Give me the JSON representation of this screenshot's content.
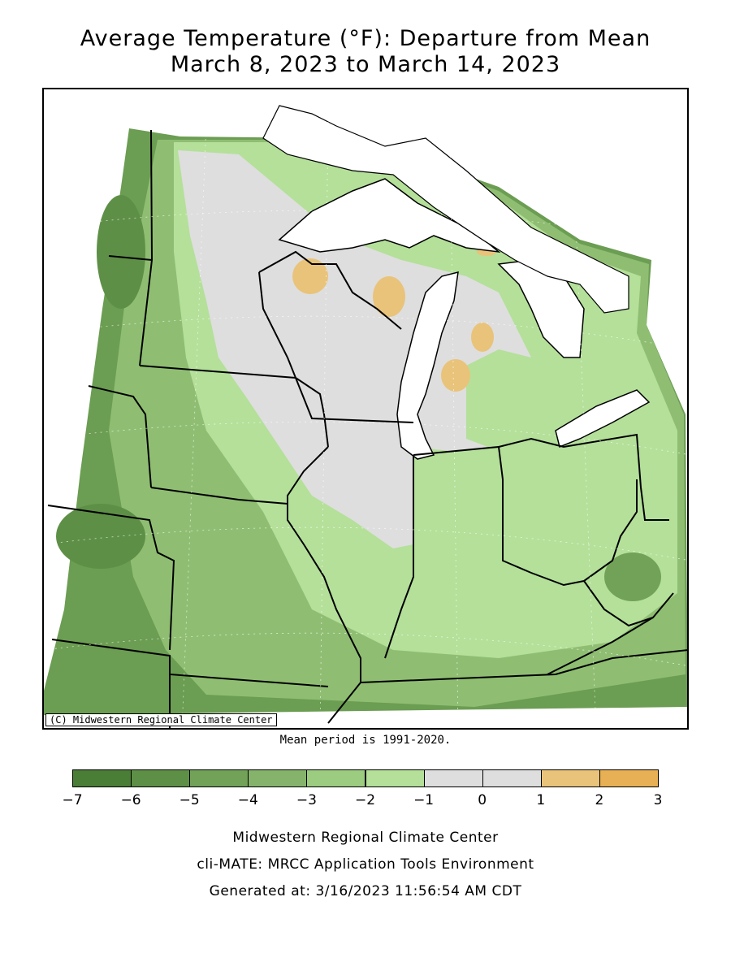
{
  "title": {
    "line1": "Average Temperature (°F): Departure from Mean",
    "line2": "March 8, 2023 to March 14, 2023"
  },
  "map": {
    "copyright": "(C) Midwestern Regional Climate Center",
    "mean_period": "Mean period is 1991-2020.",
    "region": "Midwest United States",
    "colors": {
      "lake": "#ffffff",
      "cool_strong": "#6b9d52",
      "cool_mid": "#8fbe72",
      "cool_light": "#b4e09a",
      "near_normal": "#dedede",
      "warm": "#e9c37a"
    }
  },
  "legend": {
    "ticks": [
      "−7",
      "−6",
      "−5",
      "−4",
      "−3",
      "−2",
      "−1",
      "0",
      "1",
      "2",
      "3"
    ],
    "bins": [
      {
        "range": "-7 to -6",
        "color": "#4a7d36"
      },
      {
        "range": "-6 to -5",
        "color": "#5e8f47"
      },
      {
        "range": "-5 to -4",
        "color": "#71a258"
      },
      {
        "range": "-4 to -3",
        "color": "#85b36b"
      },
      {
        "range": "-3 to -2",
        "color": "#9ccc80"
      },
      {
        "range": "-2 to -1",
        "color": "#b4e09a"
      },
      {
        "range": "-1 to 0",
        "color": "#dedede"
      },
      {
        "range": "0 to 1",
        "color": "#dedede"
      },
      {
        "range": "1 to 2",
        "color": "#e9c37a"
      },
      {
        "range": "2 to 3",
        "color": "#e8b055"
      }
    ]
  },
  "footer": {
    "line1": "Midwestern Regional Climate Center",
    "line2": "cli-MATE: MRCC Application Tools Environment",
    "line3": "Generated at: 3/16/2023 11:56:54 AM CDT"
  }
}
